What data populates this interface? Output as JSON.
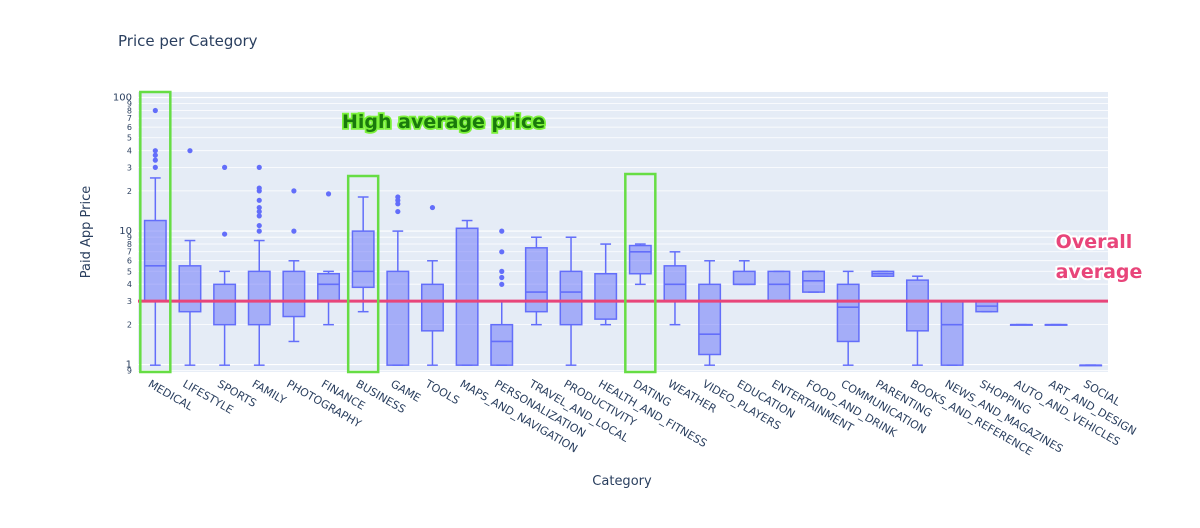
{
  "chart_data": {
    "type": "box",
    "title": "Price per Category",
    "xlabel": "Category",
    "ylabel": "Paid App Price",
    "yscale": "log",
    "ylim": [
      0.88,
      110
    ],
    "grid": true,
    "colors": {
      "box": "#636efa",
      "box_fill": "rgba(99,110,250,0.5)",
      "plot_bg": "#e5ecf6",
      "average_line": "#e8457a",
      "highlight": "#66dd44"
    },
    "major_ticks": [
      {
        "value": 1,
        "label": "1"
      },
      {
        "value": 10,
        "label": "10"
      },
      {
        "value": 100,
        "label": "100"
      }
    ],
    "minor_ticks": [
      {
        "value": 2,
        "label": "2"
      },
      {
        "value": 3,
        "label": "3"
      },
      {
        "value": 4,
        "label": "4"
      },
      {
        "value": 5,
        "label": "5"
      },
      {
        "value": 6,
        "label": "6"
      },
      {
        "value": 7,
        "label": "7"
      },
      {
        "value": 8,
        "label": "8"
      },
      {
        "value": 9,
        "label": "9"
      },
      {
        "value": 20,
        "label": "2"
      },
      {
        "value": 30,
        "label": "3"
      },
      {
        "value": 40,
        "label": "4"
      },
      {
        "value": 50,
        "label": "5"
      },
      {
        "value": 60,
        "label": "6"
      },
      {
        "value": 70,
        "label": "7"
      },
      {
        "value": 80,
        "label": "8"
      },
      {
        "value": 90,
        "label": "9"
      },
      {
        "value": 0.9,
        "label": "9"
      },
      {
        "value": 0.8,
        "label": "8"
      }
    ],
    "overall_average": 2.99,
    "boxes": [
      {
        "category": "MEDICAL",
        "whisker_low": 0.99,
        "q1": 2.99,
        "median": 5.49,
        "q3": 11.99,
        "whisker_high": 24.99,
        "outliers": [
          29.99,
          33.99,
          36.99,
          39.99,
          79.99
        ]
      },
      {
        "category": "LIFESTYLE",
        "whisker_low": 0.99,
        "q1": 2.49,
        "median": 2.99,
        "q3": 5.49,
        "whisker_high": 8.49,
        "outliers": [
          39.99
        ]
      },
      {
        "category": "SPORTS",
        "whisker_low": 0.99,
        "q1": 1.99,
        "median": 2.99,
        "q3": 3.99,
        "whisker_high": 4.99,
        "outliers": [
          9.49,
          29.99
        ]
      },
      {
        "category": "FAMILY",
        "whisker_low": 0.99,
        "q1": 1.99,
        "median": 2.99,
        "q3": 4.99,
        "whisker_high": 8.49,
        "outliers": [
          9.99,
          10.99,
          12.99,
          13.99,
          14.99,
          16.99,
          19.99,
          20.99,
          29.99
        ]
      },
      {
        "category": "PHOTOGRAPHY",
        "whisker_low": 1.49,
        "q1": 2.29,
        "median": 2.99,
        "q3": 4.99,
        "whisker_high": 5.99,
        "outliers": [
          9.99,
          19.99
        ]
      },
      {
        "category": "FINANCE",
        "whisker_low": 1.99,
        "q1": 2.99,
        "median": 3.99,
        "q3": 4.79,
        "whisker_high": 4.99,
        "outliers": [
          18.99
        ]
      },
      {
        "category": "BUSINESS",
        "whisker_low": 2.49,
        "q1": 3.79,
        "median": 4.99,
        "q3": 9.99,
        "whisker_high": 17.99,
        "outliers": []
      },
      {
        "category": "GAME",
        "whisker_low": 0.99,
        "q1": 0.99,
        "median": 2.99,
        "q3": 4.99,
        "whisker_high": 9.99,
        "outliers": [
          13.99,
          15.99,
          16.99,
          17.99
        ]
      },
      {
        "category": "TOOLS",
        "whisker_low": 0.99,
        "q1": 1.79,
        "median": 2.99,
        "q3": 3.99,
        "whisker_high": 5.99,
        "outliers": [
          14.99
        ]
      },
      {
        "category": "MAPS_AND_NAVIGATION",
        "whisker_low": 0.99,
        "q1": 0.99,
        "median": 2.99,
        "q3": 10.49,
        "whisker_high": 11.99,
        "outliers": []
      },
      {
        "category": "PERSONALIZATION",
        "whisker_low": 0.99,
        "q1": 0.99,
        "median": 1.49,
        "q3": 1.99,
        "whisker_high": 2.99,
        "outliers": [
          3.99,
          4.49,
          4.99,
          6.99,
          9.99
        ]
      },
      {
        "category": "TRAVEL_AND_LOCAL",
        "whisker_low": 1.99,
        "q1": 2.49,
        "median": 3.49,
        "q3": 7.49,
        "whisker_high": 8.99,
        "outliers": []
      },
      {
        "category": "PRODUCTIVITY",
        "whisker_low": 0.99,
        "q1": 1.99,
        "median": 3.49,
        "q3": 4.99,
        "whisker_high": 8.99,
        "outliers": []
      },
      {
        "category": "HEALTH_AND_FITNESS",
        "whisker_low": 1.99,
        "q1": 2.19,
        "median": 2.99,
        "q3": 4.79,
        "whisker_high": 7.99,
        "outliers": []
      },
      {
        "category": "DATING",
        "whisker_low": 3.99,
        "q1": 4.79,
        "median": 6.99,
        "q3": 7.79,
        "whisker_high": 7.99,
        "outliers": []
      },
      {
        "category": "WEATHER",
        "whisker_low": 1.99,
        "q1": 2.99,
        "median": 3.99,
        "q3": 5.49,
        "whisker_high": 6.99,
        "outliers": []
      },
      {
        "category": "VIDEO_PLAYERS",
        "whisker_low": 0.99,
        "q1": 1.19,
        "median": 1.69,
        "q3": 3.99,
        "whisker_high": 5.99,
        "outliers": []
      },
      {
        "category": "EDUCATION",
        "whisker_low": 3.99,
        "q1": 3.99,
        "median": 3.99,
        "q3": 4.99,
        "whisker_high": 5.99,
        "outliers": []
      },
      {
        "category": "ENTERTAINMENT",
        "whisker_low": 2.99,
        "q1": 2.99,
        "median": 3.99,
        "q3": 4.99,
        "whisker_high": 4.99,
        "outliers": []
      },
      {
        "category": "FOOD_AND_DRINK",
        "whisker_low": 3.49,
        "q1": 3.49,
        "median": 4.24,
        "q3": 4.99,
        "whisker_high": 4.99,
        "outliers": []
      },
      {
        "category": "COMMUNICATION",
        "whisker_low": 0.99,
        "q1": 1.49,
        "median": 2.69,
        "q3": 3.99,
        "whisker_high": 4.99,
        "outliers": []
      },
      {
        "category": "PARENTING",
        "whisker_low": 4.59,
        "q1": 4.59,
        "median": 4.79,
        "q3": 4.99,
        "whisker_high": 4.99,
        "outliers": []
      },
      {
        "category": "BOOKS_AND_REFERENCE",
        "whisker_low": 0.99,
        "q1": 1.79,
        "median": 2.99,
        "q3": 4.29,
        "whisker_high": 4.59,
        "outliers": []
      },
      {
        "category": "NEWS_AND_MAGAZINES",
        "whisker_low": 0.99,
        "q1": 0.99,
        "median": 1.99,
        "q3": 2.99,
        "whisker_high": 2.99,
        "outliers": []
      },
      {
        "category": "SHOPPING",
        "whisker_low": 2.49,
        "q1": 2.49,
        "median": 2.74,
        "q3": 2.99,
        "whisker_high": 2.99,
        "outliers": []
      },
      {
        "category": "AUTO_AND_VEHICLES",
        "whisker_low": 1.99,
        "q1": 1.99,
        "median": 1.99,
        "q3": 1.99,
        "whisker_high": 1.99,
        "outliers": []
      },
      {
        "category": "ART_AND_DESIGN",
        "whisker_low": 1.99,
        "q1": 1.99,
        "median": 1.99,
        "q3": 1.99,
        "whisker_high": 1.99,
        "outliers": []
      },
      {
        "category": "SOCIAL",
        "whisker_low": 0.99,
        "q1": 0.99,
        "median": 0.99,
        "q3": 0.99,
        "whisker_high": 0.99,
        "outliers": []
      }
    ],
    "highlighted_categories": [
      "MEDICAL",
      "BUSINESS",
      "DATING"
    ],
    "annotations": {
      "high_average": "High average price",
      "overall_line_1": "Overall",
      "overall_line_2": "average"
    }
  }
}
